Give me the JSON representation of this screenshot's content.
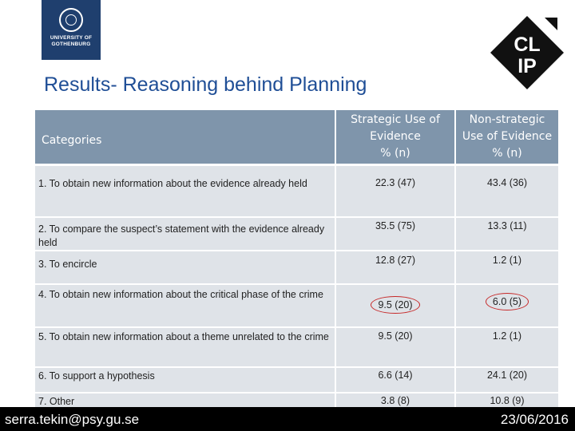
{
  "logo": {
    "university": "UNIVERSITY OF",
    "city": "GOTHENBURG",
    "clip_top": "CL",
    "clip_bottom": "IP"
  },
  "title": "Results- Reasoning behind Planning",
  "table": {
    "headers": {
      "categories": "Categories",
      "strategic": [
        "Strategic Use of",
        "Evidence",
        "% (n)"
      ],
      "non_strategic": [
        "Non-strategic",
        "Use of Evidence",
        "% (n)"
      ]
    },
    "rows": [
      {
        "category": "1. To obtain new information about the evidence already held",
        "strategic": "22.3 (47)",
        "non_strategic": "43.4 (36)"
      },
      {
        "category": "2.  To compare the suspect’s statement with the evidence already held",
        "strategic": "35.5 (75)",
        "non_strategic": "13.3 (11)"
      },
      {
        "category": "3. To encircle",
        "strategic": "12.8 (27)",
        "non_strategic": "1.2 (1)"
      },
      {
        "category": "4. To obtain new information  about the critical phase of the crime",
        "strategic": "9.5 (20)",
        "non_strategic": "6.0 (5)"
      },
      {
        "category": "5. To obtain new information about a theme unrelated to the crime",
        "strategic": "9.5 (20)",
        "non_strategic": "1.2 (1)"
      },
      {
        "category": "6. To support a hypothesis",
        "strategic": "6.6 (14)",
        "non_strategic": "24.1 (20)"
      },
      {
        "category": "7. Other",
        "strategic": "3.8 (8)",
        "non_strategic": "10.8 (9)"
      }
    ]
  },
  "footer": {
    "email": "serra.tekin@psy.gu.se",
    "date": "23/06/2016"
  },
  "colors": {
    "header_bg": "#7f95ab",
    "row_bg": "#dfe3e8",
    "title": "#1f4e96",
    "highlight_ring": "#c62828"
  }
}
